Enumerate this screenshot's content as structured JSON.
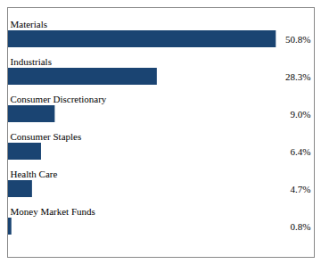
{
  "chart_data": {
    "type": "bar",
    "orientation": "horizontal",
    "categories": [
      "Materials",
      "Industrials",
      "Consumer Discretionary",
      "Consumer Staples",
      "Health Care",
      "Money Market Funds"
    ],
    "values": [
      50.8,
      28.3,
      9.0,
      6.4,
      4.7,
      0.8
    ],
    "value_labels": [
      "50.8%",
      "28.3%",
      "9.0%",
      "6.4%",
      "4.7%",
      "0.8%"
    ],
    "data_labels": true,
    "color": "#1a4472",
    "xlim": [
      0,
      58
    ],
    "grid": false,
    "tick_labels": false
  }
}
